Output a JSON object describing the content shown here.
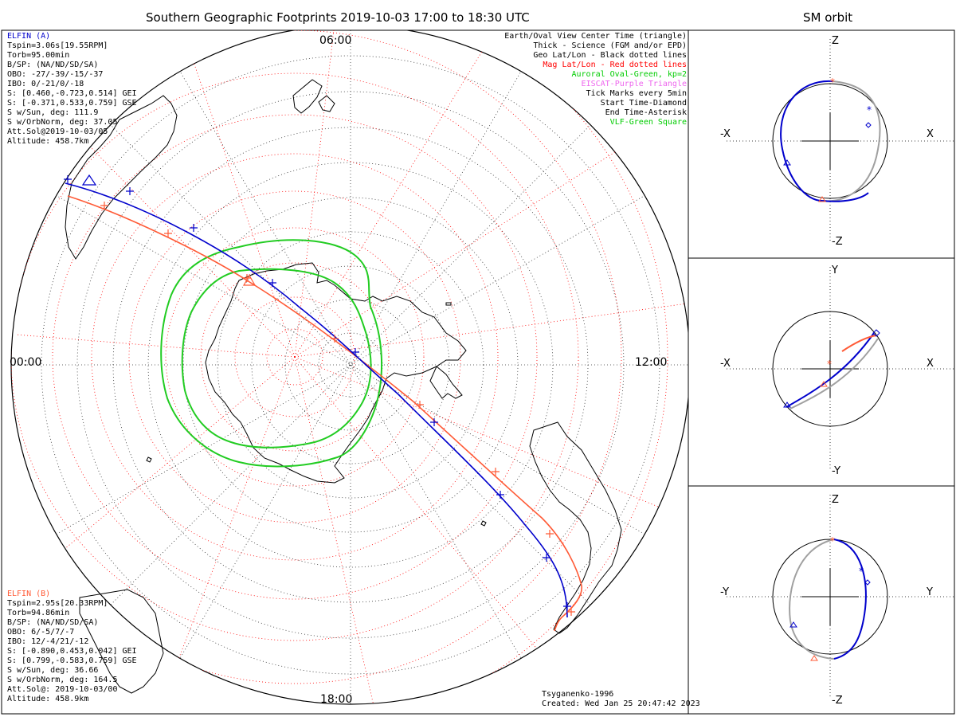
{
  "title": "Southern Geographic Footprints 2019-10-03 17:00 to 18:30 UTC",
  "sm_title": "SM orbit",
  "time_labels": {
    "top": "06:00",
    "left": "00:00",
    "right": "12:00",
    "bottom": "18:00"
  },
  "elfin_a": {
    "name": "ELFIN (A)",
    "color": "#0000cc",
    "lines": [
      "Tspin=3.06s[19.55RPM]",
      "Torb=95.00min",
      "B/SP: (NA/ND/SD/SA)",
      "OBO: -27/-39/-15/-37",
      "IBO: 0/-21/0/-18",
      "S: [0.460,-0.723,0.514] GEI",
      "S: [-0.371,0.533,0.759] GSE",
      "S w/Sun, deg: 111.9",
      "S w/OrbNorm, deg: 37.05",
      "Att.Sol@2019-10-03/05",
      "Altitude: 458.7km"
    ]
  },
  "elfin_b": {
    "name": "ELFIN (B)",
    "color": "#ff5a36",
    "lines": [
      "Tspin=2.95s[20.33RPM]",
      "Torb=94.86min",
      "B/SP: (NA/ND/SD/SA)",
      "OBO: 6/-5/7/-7",
      "IBO: 12/-4/21/-12",
      "S: [-0.890,0.453,0.042] GEI",
      "S: [0.799,-0.583,0.759] GSE",
      "S w/Sun, deg: 36.66",
      "S w/OrbNorm, deg: 164.5",
      "Att.Sol@: 2019-10-03/00",
      "Altitude: 458.9km"
    ]
  },
  "legend": [
    {
      "text": "Earth/Oval View Center Time (triangle)",
      "color": "#000000"
    },
    {
      "text": "Thick - Science (FGM and/or EPD)",
      "color": "#000000"
    },
    {
      "text": "Geo Lat/Lon - Black dotted lines",
      "color": "#000000"
    },
    {
      "text": "Mag Lat/Lon - Red dotted lines",
      "color": "#ff0000"
    },
    {
      "text": "Auroral Oval-Green, kp=2",
      "color": "#00cc00"
    },
    {
      "text": "EISCAT-Purple Triangle",
      "color": "#ee66ee"
    },
    {
      "text": "Tick Marks every 5min",
      "color": "#000000"
    },
    {
      "text": "Start Time-Diamond",
      "color": "#000000"
    },
    {
      "text": "End Time-Asterisk",
      "color": "#000000"
    },
    {
      "text": "VLF-Green Square",
      "color": "#00cc00"
    }
  ],
  "credits": {
    "model": "Tsyganenko-1996",
    "created": "Created: Wed Jan 25 20:47:42 2023"
  },
  "sm_panels": [
    {
      "top": "Z",
      "bottom": "-Z",
      "left": "-X",
      "right": "X"
    },
    {
      "top": "Y",
      "bottom": "-Y",
      "left": "-X",
      "right": "X"
    },
    {
      "top": "Z",
      "bottom": "-Z",
      "left": "-Y",
      "right": "Y"
    }
  ],
  "colors": {
    "grid_red": "#ff0000",
    "oval": "#00cc00",
    "orbit_gray": "#a0a0a0"
  }
}
